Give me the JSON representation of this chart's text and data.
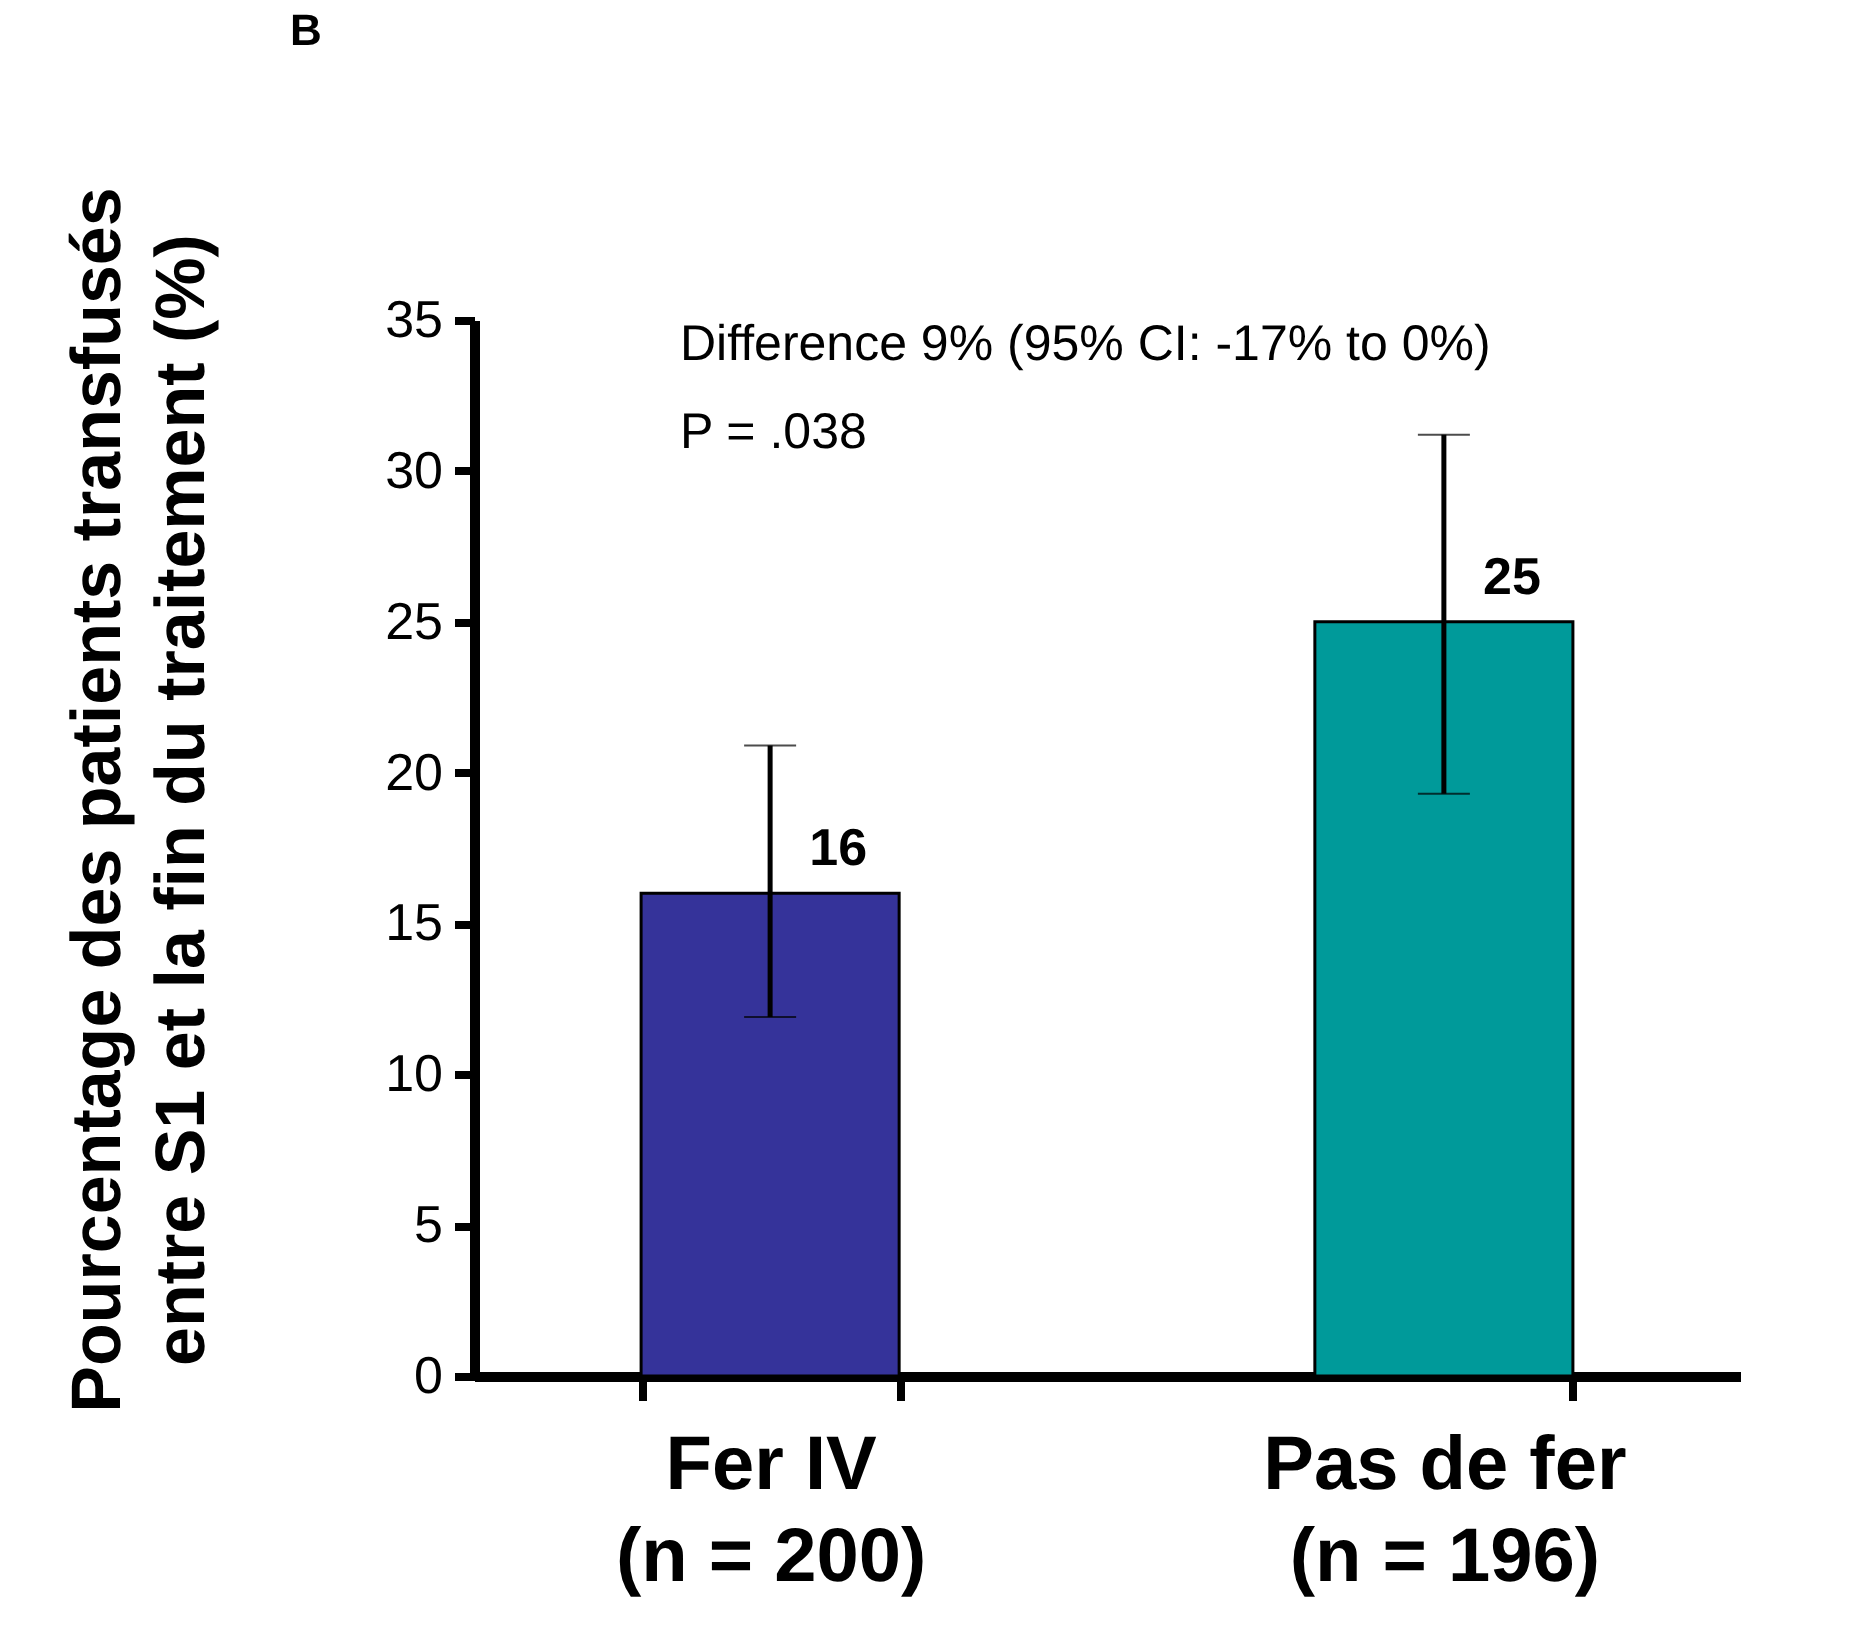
{
  "chart_data": {
    "type": "bar",
    "title": "B",
    "ylabel": "Pourcentage des patients transfusés\nentre S1 et la fin du traitement (%)",
    "categories": [
      "Fer IV\n(n = 200)",
      "Pas de fer\n(n = 196)"
    ],
    "values": [
      16,
      25
    ],
    "colors": [
      "#35339a",
      "#009a9a"
    ],
    "errors": [
      [
        11.9,
        20.9
      ],
      [
        19.3,
        31.2
      ]
    ],
    "value_labels": [
      "16",
      "25"
    ],
    "ylim": [
      0,
      35
    ],
    "yticks": [
      0,
      5,
      10,
      15,
      20,
      25,
      30,
      35
    ],
    "grid": false,
    "legend": false,
    "annotations": [
      "Difference 9% (95% CI: -17% to 0%)",
      "P = .038"
    ]
  }
}
